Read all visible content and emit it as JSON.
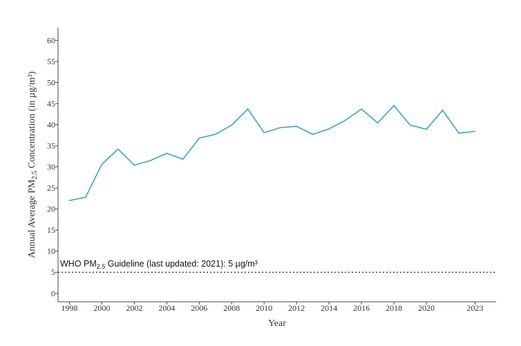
{
  "chart_data": {
    "type": "line",
    "title": "",
    "xlabel": "Year",
    "ylabel_prefix": "Annual Average PM",
    "ylabel_sub": "2.5",
    "ylabel_suffix": " Concentration (in µg/m³)",
    "xlim": [
      1997.3,
      2024.3
    ],
    "ylim": [
      -2,
      63
    ],
    "yticks": [
      0,
      5,
      10,
      15,
      20,
      25,
      30,
      35,
      40,
      45,
      50,
      55,
      60
    ],
    "ytick_labels": [
      "0",
      "5",
      "10",
      "15",
      "20",
      "25",
      "30",
      "35",
      "40",
      "45",
      "50",
      "55",
      "60"
    ],
    "xticks": [
      1998,
      2000,
      2002,
      2004,
      2006,
      2008,
      2010,
      2012,
      2014,
      2016,
      2018,
      2020,
      2023
    ],
    "xtick_labels": [
      "1998",
      "2000",
      "2002",
      "2004",
      "2006",
      "2008",
      "2010",
      "2012",
      "2014",
      "2016",
      "2018",
      "2020",
      "2023"
    ],
    "grid": false,
    "line_color": "#3aa5bb",
    "series": [
      {
        "x": [
          1998,
          1999,
          2000,
          2001,
          2002,
          2003,
          2004,
          2005,
          2006,
          2007,
          2008,
          2009,
          2010,
          2011,
          2012,
          2013,
          2014,
          2015,
          2016,
          2017,
          2018,
          2019,
          2020,
          2021,
          2022,
          2023
        ],
        "values": [
          22.0,
          22.8,
          30.6,
          34.2,
          30.4,
          31.5,
          33.2,
          31.8,
          36.8,
          37.7,
          39.9,
          43.7,
          38.1,
          39.3,
          39.6,
          37.7,
          39.0,
          41.0,
          43.7,
          40.4,
          44.5,
          39.9,
          38.9,
          43.4,
          38.0,
          38.4
        ]
      }
    ],
    "reference_line": {
      "value": 5,
      "style": "dotted",
      "label_prefix": "WHO PM",
      "label_sub": "2.5",
      "label_suffix": " Guideline (last updated: 2021): 5 µg/m³"
    }
  }
}
